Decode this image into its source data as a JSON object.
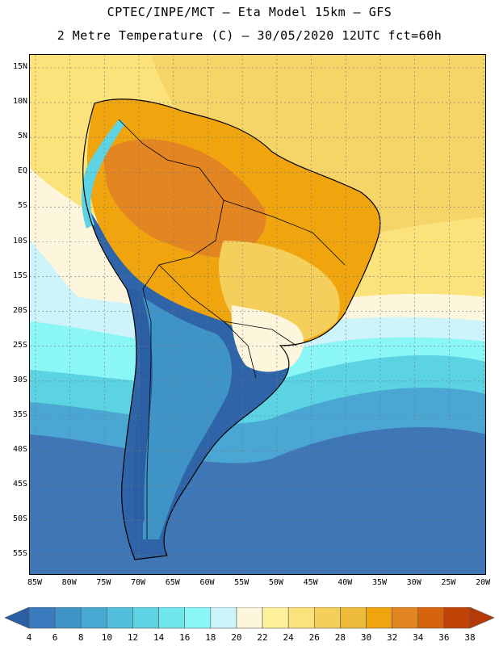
{
  "header": {
    "line1": "CPTEC/INPE/MCT –  Eta Model 15km – GFS",
    "line2": "2 Metre Temperature (C) – 30/05/2020 12UTC fct=60h"
  },
  "lat_labels": [
    "15N",
    "10N",
    "5N",
    "EQ",
    "5S",
    "10S",
    "15S",
    "20S",
    "25S",
    "30S",
    "35S",
    "40S",
    "45S",
    "50S",
    "55S"
  ],
  "lon_labels": [
    "85W",
    "80W",
    "75W",
    "70W",
    "65W",
    "60W",
    "55W",
    "50W",
    "45W",
    "40W",
    "35W",
    "30W",
    "25W",
    "20W"
  ],
  "colorbar": {
    "labels": [
      "4",
      "6",
      "8",
      "10",
      "12",
      "14",
      "16",
      "18",
      "20",
      "22",
      "24",
      "26",
      "28",
      "30",
      "32",
      "34",
      "36",
      "38"
    ],
    "colors": [
      "#2a5fa3",
      "#3a7bbd",
      "#3f94c7",
      "#48a9d3",
      "#52c0dc",
      "#5dd3e3",
      "#6fe6ec",
      "#8af6f6",
      "#cdf3fb",
      "#fdf6dc",
      "#fff19b",
      "#fbe27b",
      "#f5cf5c",
      "#efbb3b",
      "#f0a50f",
      "#e38521",
      "#d6640d",
      "#c24306",
      "#b53a07"
    ]
  }
}
